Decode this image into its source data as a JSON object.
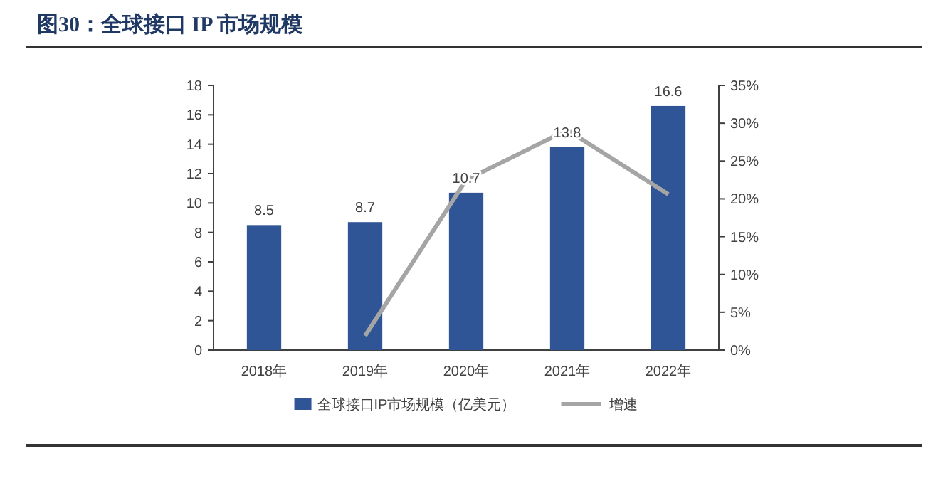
{
  "chart_data": {
    "type": "bar",
    "title": "图30：全球接口 IP 市场规模",
    "categories": [
      "2018年",
      "2019年",
      "2020年",
      "2021年",
      "2022年"
    ],
    "series": [
      {
        "name": "全球接口IP市场规模（亿美元）",
        "color": "#2f5597",
        "values": [
          8.5,
          8.7,
          10.7,
          13.8,
          16.6
        ],
        "value_labels": [
          "8.5",
          "8.7",
          "10.7",
          "13.8",
          "16.6"
        ]
      },
      {
        "name": "增速",
        "type": "line",
        "axis": "y2",
        "color": "#a5a5a5",
        "values": [
          null,
          1.9,
          22.5,
          29.1,
          20.6
        ]
      }
    ],
    "ylim": [
      0,
      18
    ],
    "yticks": [
      0,
      2,
      4,
      6,
      8,
      10,
      12,
      14,
      16,
      18
    ],
    "y2lim": [
      0,
      35
    ],
    "y2ticks": [
      {
        "value": 0,
        "label": "0%"
      },
      {
        "value": 5,
        "label": "5%"
      },
      {
        "value": 10,
        "label": "10%"
      },
      {
        "value": 15,
        "label": "15%"
      },
      {
        "value": 20,
        "label": "20%"
      },
      {
        "value": 25,
        "label": "25%"
      },
      {
        "value": 30,
        "label": "30%"
      },
      {
        "value": 35,
        "label": "35%"
      }
    ],
    "legend": "bottom",
    "grid": false,
    "marker": "none",
    "line_style": "solid"
  }
}
